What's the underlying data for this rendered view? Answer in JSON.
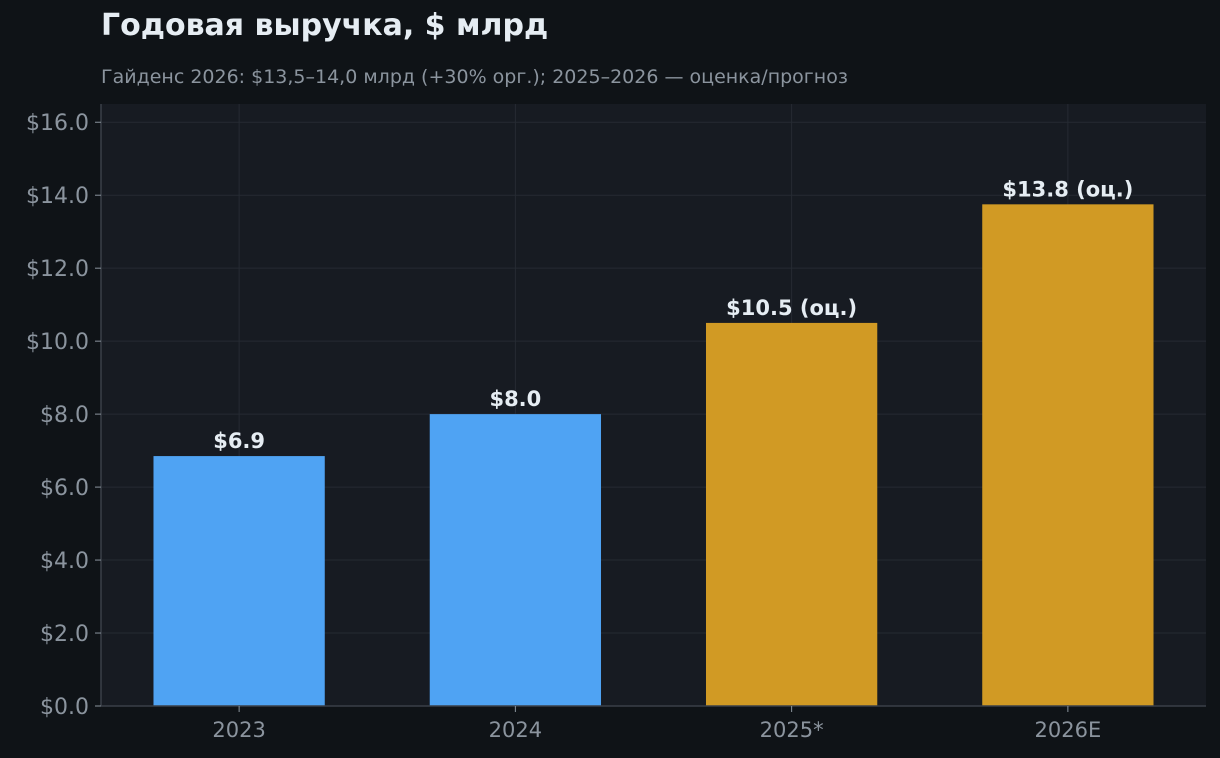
{
  "chart_data": {
    "type": "bar",
    "title": "Годовая выручка, $ млрд",
    "subtitle": "Гайденс 2026: $13,5–14,0 млрд (+30% орг.); 2025–2026 — оценка/прогноз",
    "categories": [
      "2023",
      "2024",
      "2025*",
      "2026E"
    ],
    "values": [
      6.85,
      8.0,
      10.5,
      13.75
    ],
    "data_labels": [
      "$6.9",
      "$8.0",
      "$10.5 (оц.)",
      "$13.8 (оц.)"
    ],
    "ylim": [
      0,
      16.5
    ],
    "yticks": [
      0,
      2,
      4,
      6,
      8,
      10,
      12,
      14,
      16
    ],
    "ytick_labels": [
      "$0.0",
      "$2.0",
      "$4.0",
      "$6.0",
      "$8.0",
      "$10.0",
      "$12.0",
      "$14.0",
      "$16.0"
    ],
    "grid": true,
    "xlabel": "",
    "ylabel": "",
    "bar_colors": [
      "#4fa3f3",
      "#4fa3f3",
      "#d19a24",
      "#d19a24"
    ]
  },
  "colors": {
    "page_background": "#0f1317",
    "plot_background": "#171b22",
    "grid": "#262b33",
    "axis": "#3a4048",
    "tick_text": "#8b949e",
    "label_text": "#e6edf3"
  }
}
